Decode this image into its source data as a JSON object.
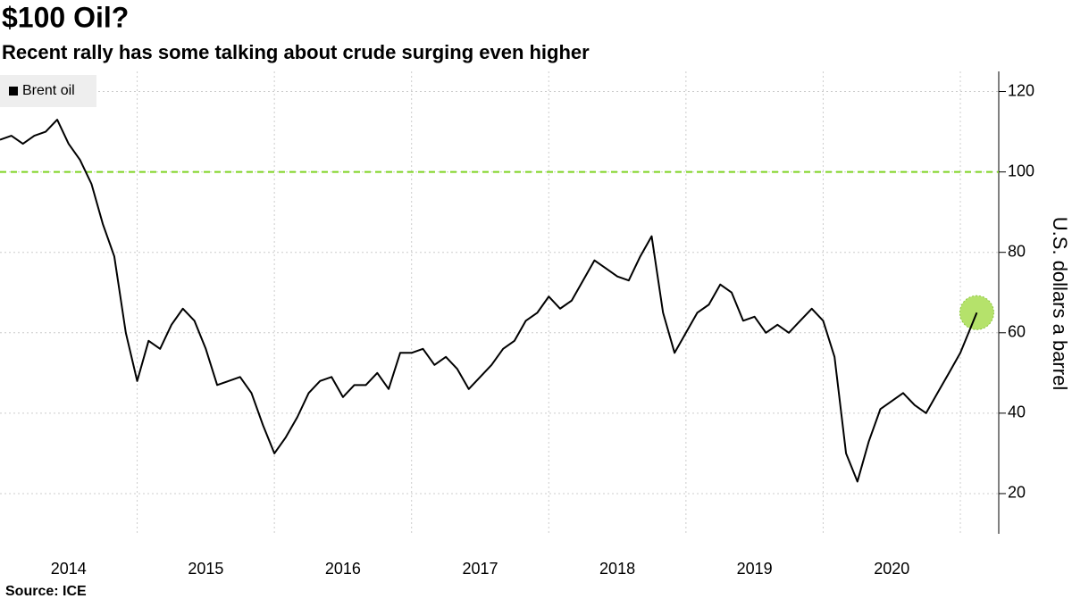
{
  "chart_data": {
    "type": "line",
    "title": "$100 Oil?",
    "subtitle": "Recent rally has some talking about crude surging even higher",
    "source": "Source: ICE",
    "y_axis_label": "U.S. dollars a barrel",
    "reference_line": {
      "value": 100,
      "color": "#7ed321"
    },
    "highlight_last": true,
    "highlight_color": "#b5e26b",
    "legend_position": "top-left",
    "grid": true,
    "xlim": [
      2014,
      2021.28
    ],
    "xgrid": [
      2015,
      2016,
      2017,
      2018,
      2019,
      2020,
      2021
    ],
    "xticks": [
      {
        "value": 2014.5,
        "label": "2014"
      },
      {
        "value": 2015.5,
        "label": "2015"
      },
      {
        "value": 2016.5,
        "label": "2016"
      },
      {
        "value": 2017.5,
        "label": "2017"
      },
      {
        "value": 2018.5,
        "label": "2018"
      },
      {
        "value": 2019.5,
        "label": "2019"
      },
      {
        "value": 2020.5,
        "label": "2020"
      }
    ],
    "ylim": [
      10,
      125
    ],
    "yticks": [
      20,
      40,
      60,
      80,
      100,
      120
    ],
    "x": [
      2014,
      2014.083,
      2014.167,
      2014.25,
      2014.333,
      2014.417,
      2014.5,
      2014.583,
      2014.667,
      2014.75,
      2014.833,
      2014.917,
      2015,
      2015.083,
      2015.167,
      2015.25,
      2015.333,
      2015.417,
      2015.5,
      2015.583,
      2015.667,
      2015.75,
      2015.833,
      2015.917,
      2016,
      2016.083,
      2016.167,
      2016.25,
      2016.333,
      2016.417,
      2016.5,
      2016.583,
      2016.667,
      2016.75,
      2016.833,
      2016.917,
      2017,
      2017.083,
      2017.167,
      2017.25,
      2017.333,
      2017.417,
      2017.5,
      2017.583,
      2017.667,
      2017.75,
      2017.833,
      2017.917,
      2018,
      2018.083,
      2018.167,
      2018.25,
      2018.333,
      2018.417,
      2018.5,
      2018.583,
      2018.667,
      2018.75,
      2018.833,
      2018.917,
      2019,
      2019.083,
      2019.167,
      2019.25,
      2019.333,
      2019.417,
      2019.5,
      2019.583,
      2019.667,
      2019.75,
      2019.833,
      2019.917,
      2020,
      2020.083,
      2020.167,
      2020.25,
      2020.333,
      2020.417,
      2020.5,
      2020.583,
      2020.667,
      2020.75,
      2020.833,
      2020.917,
      2021,
      2021.12
    ],
    "series": [
      {
        "name": "Brent oil",
        "color": "#000000",
        "values": [
          108,
          109,
          107,
          109,
          110,
          113,
          107,
          103,
          97,
          87,
          79,
          60,
          48,
          58,
          56,
          62,
          66,
          63,
          56,
          47,
          48,
          49,
          45,
          37,
          30,
          34,
          39,
          45,
          48,
          49,
          44,
          47,
          47,
          50,
          46,
          55,
          55,
          56,
          52,
          54,
          51,
          46,
          49,
          52,
          56,
          58,
          63,
          65,
          69,
          66,
          68,
          73,
          78,
          76,
          74,
          73,
          79,
          84,
          65,
          55,
          60,
          65,
          67,
          72,
          70,
          63,
          64,
          60,
          62,
          60,
          63,
          66,
          63,
          54,
          30,
          23,
          33,
          41,
          43,
          45,
          42,
          40,
          45,
          50,
          55,
          65
        ]
      }
    ]
  }
}
